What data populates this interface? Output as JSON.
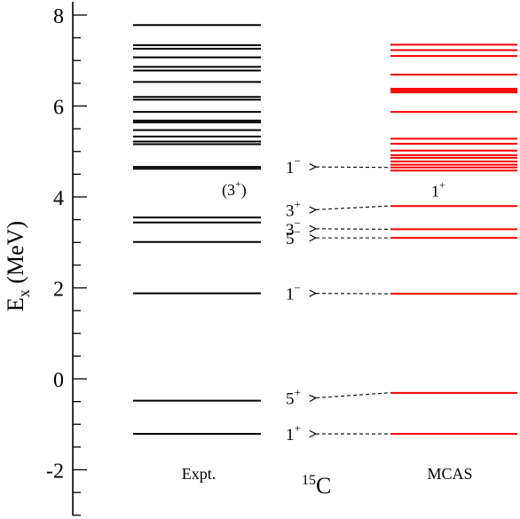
{
  "chart_data": {
    "type": "energy-level-diagram",
    "title": "",
    "nucleus": {
      "mass_number": "15",
      "symbol": "C"
    },
    "ylabel": {
      "main": "E",
      "sub": "x",
      "rest": " (MeV)"
    },
    "ylim": [
      -3.0,
      8.35
    ],
    "yticks": [
      "-2",
      "0",
      "2",
      "4",
      "6",
      "8"
    ],
    "ytick_values": [
      -2,
      0,
      2,
      4,
      6,
      8
    ],
    "minor_tick_step": 0.5,
    "series": [
      {
        "name": "Expt.",
        "color": "#000000",
        "levels": [
          7.78,
          7.34,
          7.26,
          7.07,
          6.86,
          6.78,
          6.53,
          6.2,
          6.14,
          5.87,
          5.68,
          5.64,
          5.47,
          5.33,
          5.22,
          5.16,
          4.66,
          4.62,
          3.55,
          3.44,
          3.01,
          1.88,
          -0.48,
          -1.21
        ]
      },
      {
        "name": "MCAS",
        "color": "#ff0000",
        "levels": [
          7.35,
          7.23,
          7.1,
          6.69,
          6.38,
          6.34,
          6.3,
          5.87,
          5.28,
          5.17,
          5.02,
          4.92,
          4.86,
          4.78,
          4.71,
          4.65,
          4.58,
          3.8,
          3.29,
          3.1,
          1.87,
          -0.31,
          -1.21
        ]
      }
    ],
    "assignments": [
      {
        "spin": "1",
        "parity": "−",
        "mcas": 4.65,
        "label_y": 4.66
      },
      {
        "spin": "3",
        "parity": "+",
        "mcas": 3.8,
        "label_y": 3.72
      },
      {
        "spin": "3",
        "parity": "−",
        "mcas": 3.29,
        "label_y": 3.3
      },
      {
        "spin": "5",
        "parity": "−",
        "mcas": 3.1,
        "label_y": 3.1
      },
      {
        "spin": "1",
        "parity": "−",
        "mcas": 1.87,
        "label_y": 1.88
      },
      {
        "spin": "5",
        "parity": "+",
        "mcas": -0.31,
        "label_y": -0.42
      },
      {
        "spin": "1",
        "parity": "+",
        "mcas": -1.21,
        "label_y": -1.21
      }
    ],
    "annotations": [
      {
        "text_open": "(3",
        "sup": "+",
        "text_close": ")",
        "series": "Expt.",
        "y": 4.18
      },
      {
        "text_open": "1",
        "sup": "+",
        "text_close": "",
        "series": "MCAS",
        "y": 4.15
      }
    ]
  }
}
